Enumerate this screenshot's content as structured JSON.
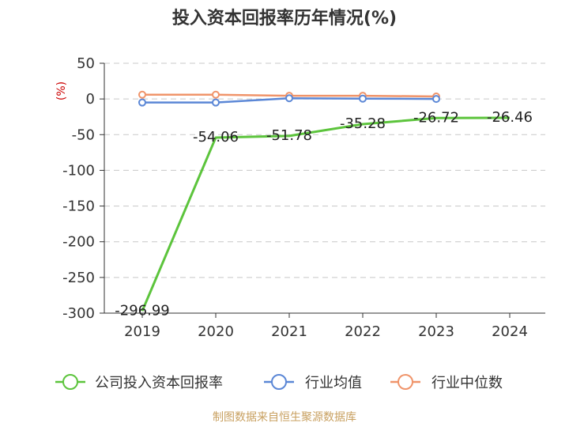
{
  "chart_data": {
    "type": "line",
    "title": "投入资本回报率历年情况(%)",
    "unit": "(%)",
    "categories": [
      "2019",
      "2020",
      "2021",
      "2022",
      "2023",
      "2024"
    ],
    "ylim": [
      -300,
      50
    ],
    "yticks": [
      50,
      0,
      -50,
      -100,
      -150,
      -200,
      -250,
      -300
    ],
    "grid": true,
    "legend_position": "bottom",
    "series": [
      {
        "name": "公司投入资本回报率",
        "color": "#5cc43c",
        "values": [
          -296.99,
          -54.06,
          -51.78,
          -35.28,
          -26.72,
          -26.46
        ],
        "labels": [
          "-296.99",
          "-54.06",
          "-51.78",
          "-35.28",
          "-26.72",
          "-26.46"
        ]
      },
      {
        "name": "行业均值",
        "color": "#5b87d6",
        "values": [
          -5,
          -5,
          1,
          0.5,
          0,
          null
        ]
      },
      {
        "name": "行业中位数",
        "color": "#f0946a",
        "values": [
          6,
          6,
          4.5,
          4.5,
          3.5,
          null
        ]
      }
    ]
  },
  "source": "制图数据来自恒生聚源数据库"
}
